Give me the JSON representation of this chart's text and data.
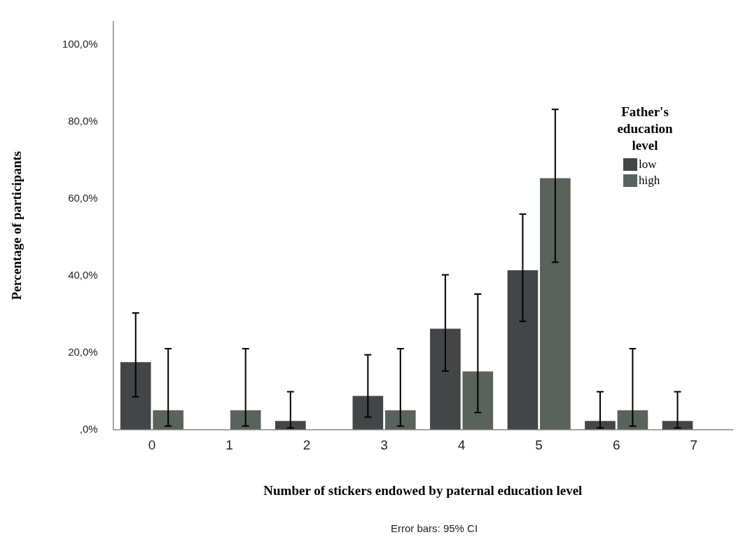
{
  "chart_data": {
    "type": "bar",
    "xlabel": "Number of stickers endowed by paternal education level",
    "ylabel": "Percentage of participants",
    "legend_title": "Father's education level",
    "annotations": [
      "Error bars: 95% CI"
    ],
    "categories": [
      "0",
      "1",
      "2",
      "3",
      "4",
      "5",
      "6",
      "7"
    ],
    "series": [
      {
        "name": "low",
        "color": "#444547",
        "values": [
          17.5,
          null,
          2.2,
          8.7,
          26.2,
          41.4,
          2.2,
          2.2
        ],
        "errors": [
          [
            8.5,
            30.3
          ],
          null,
          [
            0.4,
            9.8
          ],
          [
            3.2,
            19.4
          ],
          [
            15.2,
            40.2
          ],
          [
            28.1,
            56
          ],
          [
            0.4,
            9.8
          ],
          [
            0.4,
            9.8
          ]
        ]
      },
      {
        "name": "high",
        "color": "#5a625c",
        "values": [
          5,
          5,
          null,
          5,
          15.1,
          65.3,
          5,
          null
        ],
        "errors": [
          [
            0.9,
            21
          ],
          [
            0.9,
            21
          ],
          null,
          [
            0.9,
            21
          ],
          [
            4.4,
            35.2
          ],
          [
            43.5,
            83.2
          ],
          [
            0.9,
            21
          ],
          null
        ]
      }
    ],
    "ylim": [
      0,
      106
    ],
    "yticks": [
      {
        "value": 0,
        "label": ",0%"
      },
      {
        "value": 20,
        "label": "20,0%"
      },
      {
        "value": 40,
        "label": "40,0%"
      },
      {
        "value": 60,
        "label": "60,0%"
      },
      {
        "value": 80,
        "label": "80,0%"
      },
      {
        "value": 100,
        "label": "100,0%"
      }
    ],
    "grid": false,
    "legend": "top right"
  }
}
